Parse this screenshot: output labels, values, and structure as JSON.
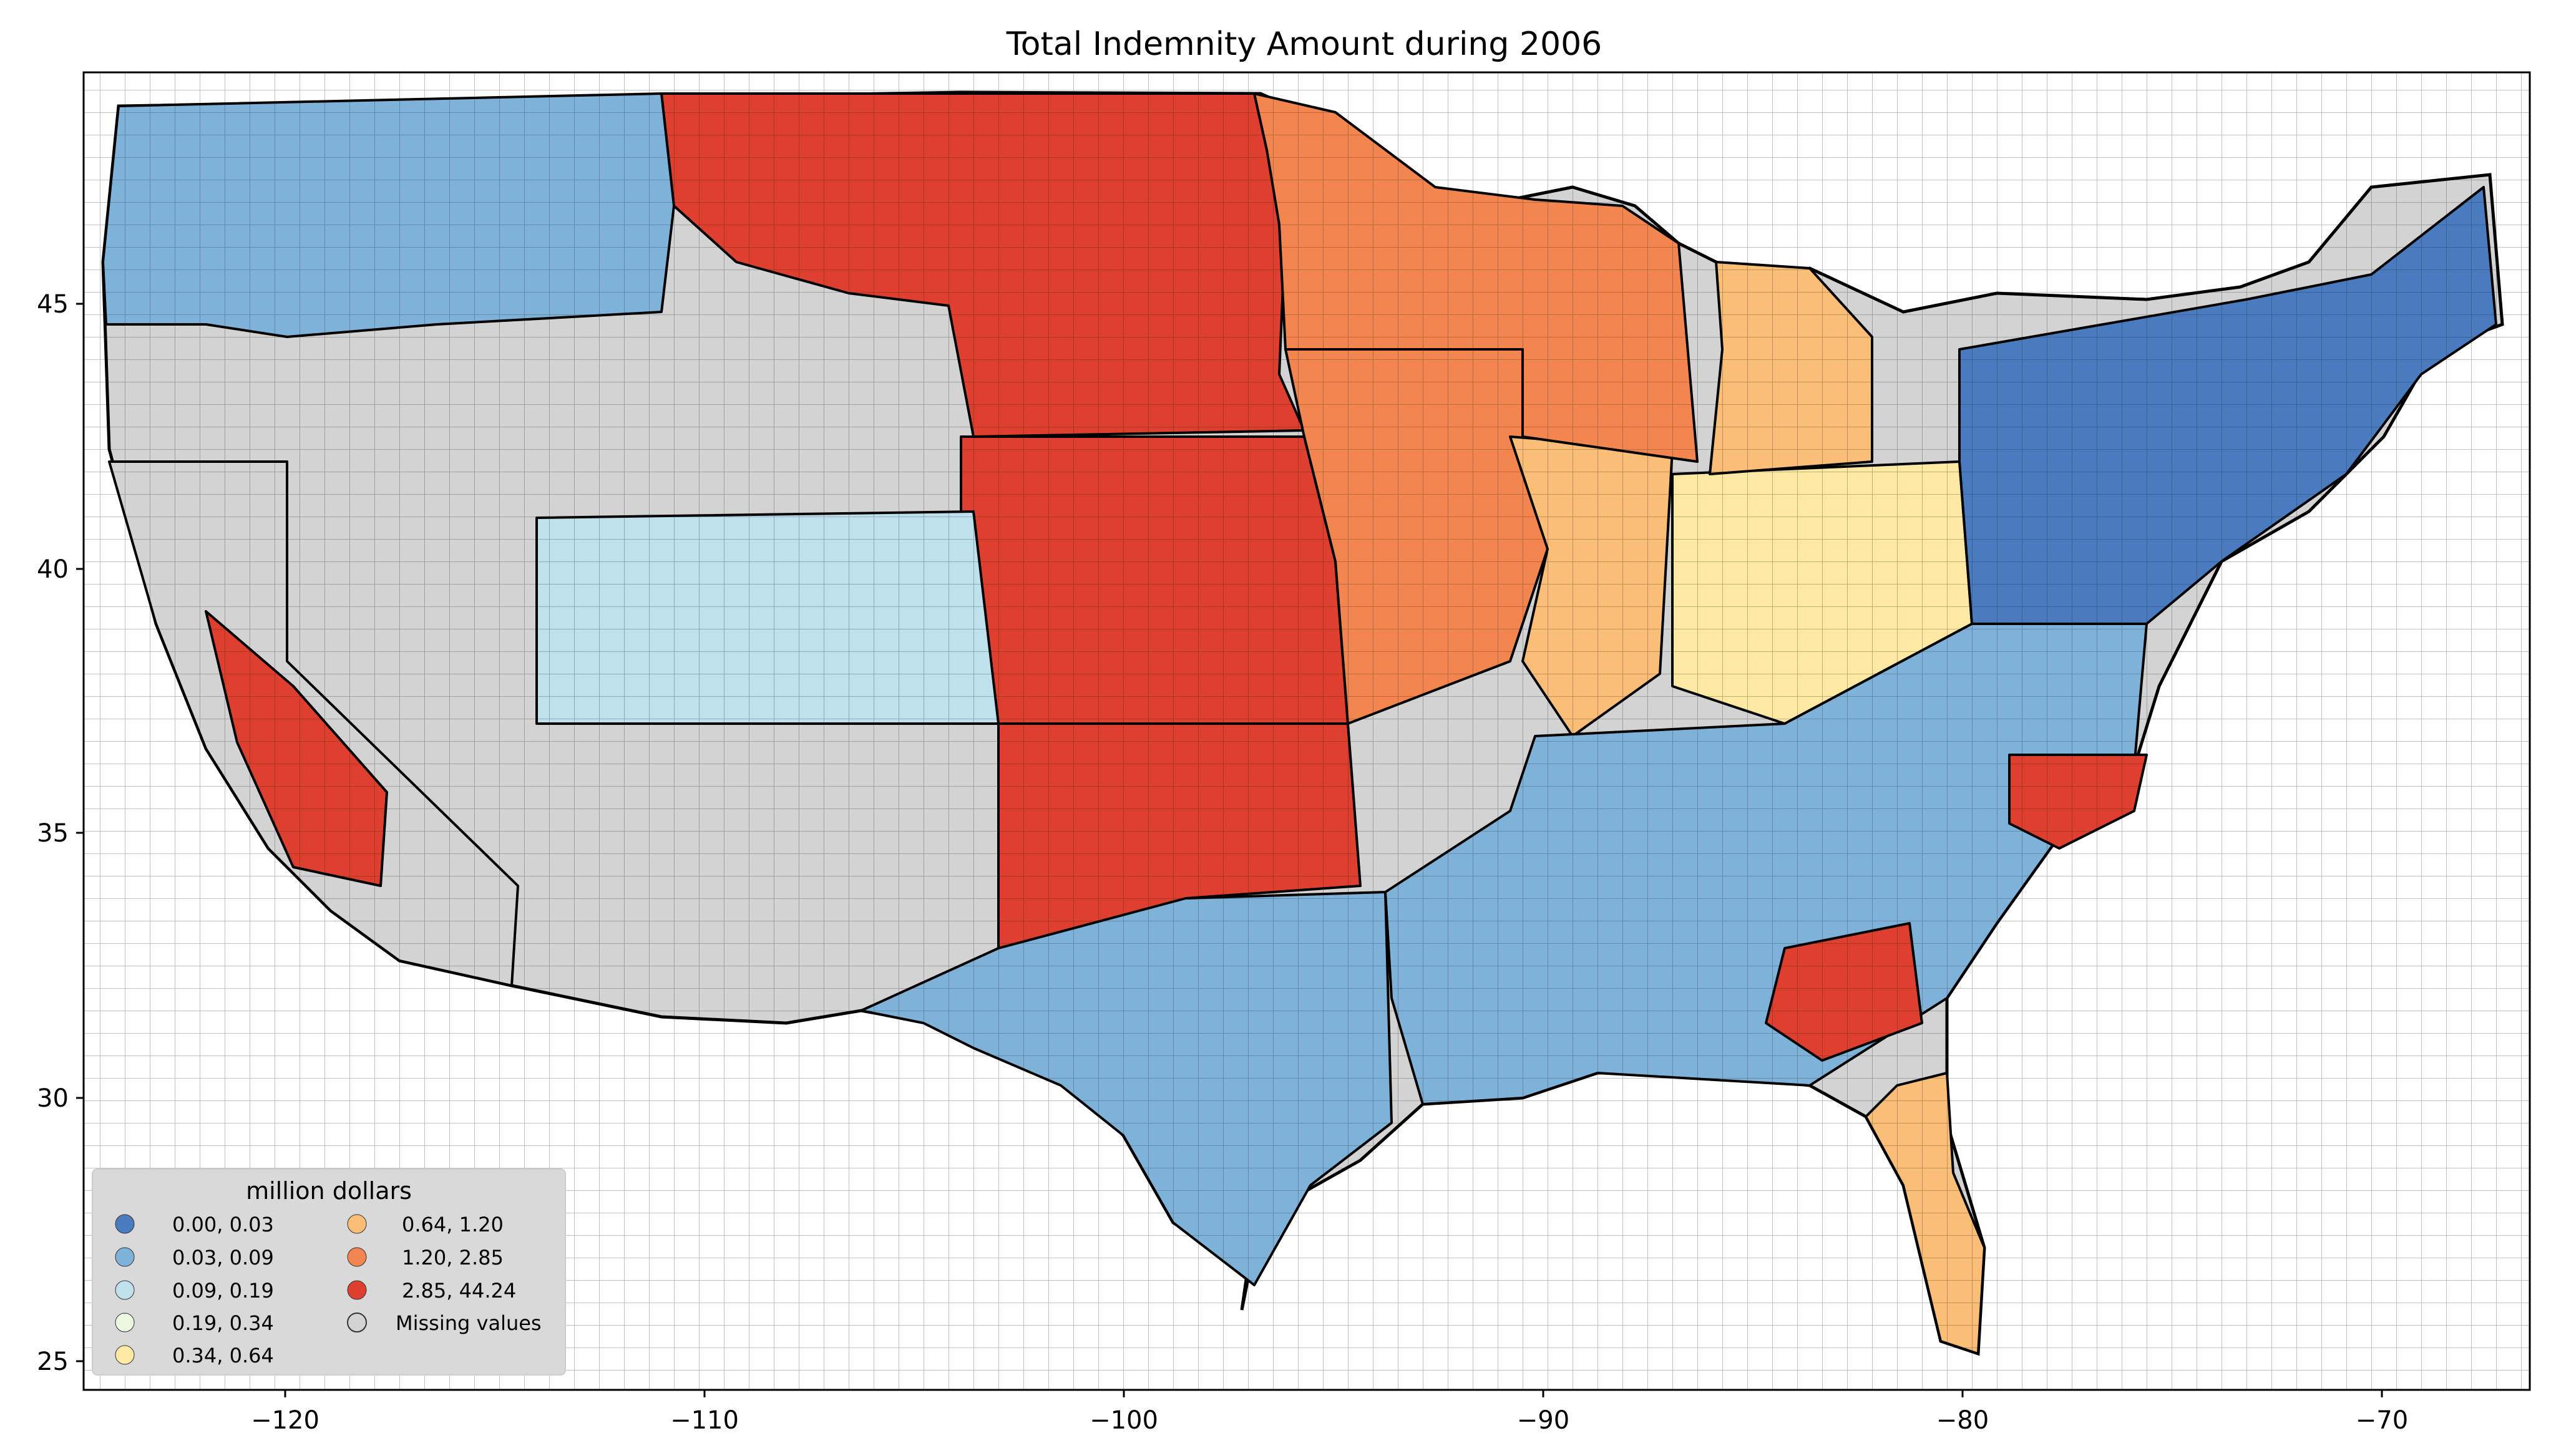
{
  "title": "Total Indemnity Amount during 2006",
  "axes": {
    "x_ticks": [
      "−120",
      "−110",
      "−100",
      "−90",
      "−80",
      "−70"
    ],
    "y_ticks": [
      "25",
      "30",
      "35",
      "40",
      "45"
    ]
  },
  "legend": {
    "title": "million dollars",
    "items": [
      {
        "label": "0.00,  0.03",
        "color": "#4a7bbf"
      },
      {
        "label": "0.03,  0.09",
        "color": "#7fb2d9"
      },
      {
        "label": "0.09,  0.19",
        "color": "#bfe0ee"
      },
      {
        "label": "0.19,  0.34",
        "color": "#eef7e2"
      },
      {
        "label": "0.34,  0.64",
        "color": "#fde9a2"
      },
      {
        "label": "0.64,  1.20",
        "color": "#fbbe76"
      },
      {
        "label": "1.20,  2.85",
        "color": "#f3854f"
      },
      {
        "label": "2.85, 44.24",
        "color": "#de3f2e"
      },
      {
        "label": "Missing values",
        "color": "#d3d3d3"
      }
    ]
  }
}
